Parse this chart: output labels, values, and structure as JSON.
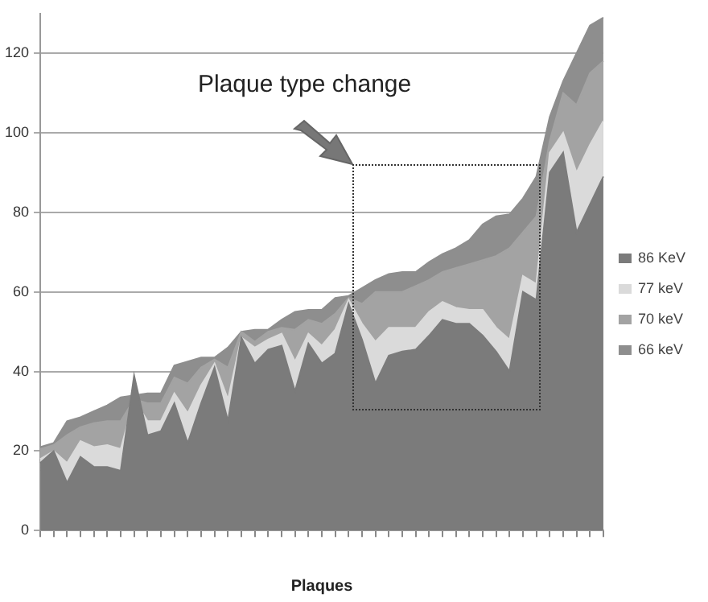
{
  "chart_data": {
    "type": "area",
    "xlabel": "Plaques",
    "categories": [
      null,
      null,
      null,
      null,
      null,
      null,
      null,
      null,
      null,
      null,
      null,
      null,
      null,
      null,
      null,
      null,
      null,
      null,
      null,
      null,
      null,
      null,
      null,
      null,
      null,
      null,
      null,
      null,
      null,
      null,
      null,
      null,
      null,
      null,
      null,
      null,
      null,
      null,
      null,
      null,
      null,
      null,
      null
    ],
    "series": [
      {
        "name": "66 keV",
        "color": "#8e8e8e",
        "values": [
          21,
          22,
          27.5,
          28.5,
          30,
          31.5,
          33.5,
          34,
          34.5,
          34.5,
          41.5,
          42.5,
          43.5,
          43.5,
          46,
          50,
          50.5,
          50.5,
          53,
          55,
          55.5,
          55.5,
          58.5,
          59,
          61,
          63,
          64.5,
          65,
          65,
          67.5,
          69.5,
          71,
          73,
          77,
          79,
          79.5,
          83.5,
          89,
          104,
          113,
          120,
          127,
          129
        ]
      },
      {
        "name": "70 keV",
        "color": "#a3a3a3",
        "values": [
          20.5,
          21.5,
          24,
          26,
          27,
          27.5,
          27.5,
          33,
          32,
          32,
          38.5,
          37,
          41,
          43,
          41,
          50,
          47.5,
          50,
          51,
          50.5,
          53,
          52,
          54.5,
          58.5,
          57,
          60,
          60,
          60,
          61.5,
          63,
          65,
          66,
          67,
          68,
          69,
          71,
          75,
          79,
          98,
          110,
          107,
          115,
          118
        ]
      },
      {
        "name": "77 keV",
        "color": "#dadada",
        "values": [
          18,
          20,
          17,
          22.5,
          21,
          21.5,
          20.5,
          33,
          27.5,
          27.5,
          34.5,
          29.5,
          36.5,
          42,
          33,
          48.5,
          46,
          48,
          49.5,
          42.5,
          49.5,
          46.5,
          50.5,
          58,
          52,
          47.5,
          51,
          51,
          51,
          55,
          57.5,
          56,
          55.5,
          55.5,
          51,
          48,
          64,
          62,
          95,
          100,
          90,
          97,
          103
        ]
      },
      {
        "name": "86 KeV",
        "color": "#7b7b7b",
        "values": [
          17,
          20,
          12,
          18.5,
          16,
          16,
          15,
          39,
          24,
          25,
          32,
          22,
          32,
          41,
          27.5,
          48.5,
          42,
          45.5,
          46.5,
          35,
          47,
          42,
          44.5,
          57,
          48,
          37,
          44,
          45,
          45.5,
          49,
          53,
          52,
          52,
          49,
          45,
          40,
          60,
          58,
          90,
          95,
          75,
          82,
          89
        ]
      }
    ],
    "ylim": [
      0,
      130
    ],
    "yticks": [
      0,
      20,
      40,
      60,
      80,
      100,
      120
    ],
    "grid": "y",
    "legend": "right",
    "annotations": [
      "Plaque type change"
    ]
  }
}
